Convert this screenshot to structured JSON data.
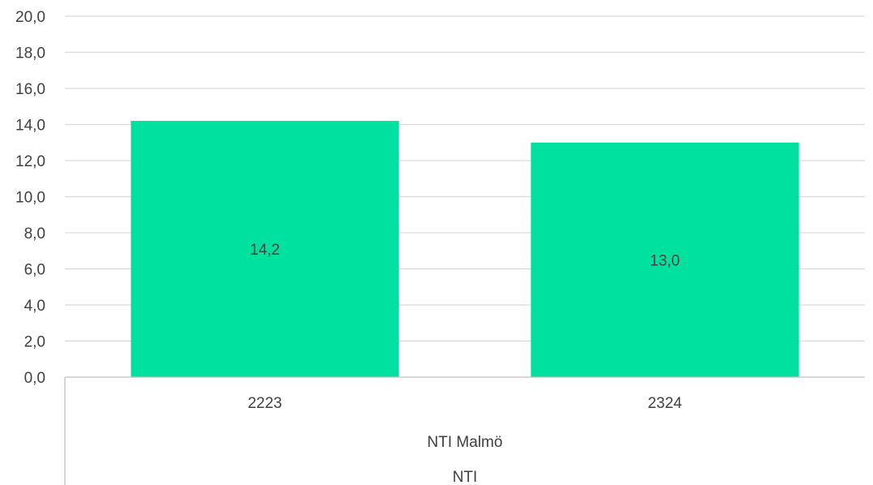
{
  "chart_data": {
    "type": "bar",
    "categories": [
      "2223",
      "2324"
    ],
    "values": [
      14.2,
      13.0
    ],
    "value_labels": [
      "14,2",
      "13,0"
    ],
    "group_labels": [
      "NTI Malmö",
      "NTI"
    ],
    "ylim": [
      0,
      20
    ],
    "y_ticks": [
      "0,0",
      "2,0",
      "4,0",
      "6,0",
      "8,0",
      "10,0",
      "12,0",
      "14,0",
      "16,0",
      "18,0",
      "20,0"
    ],
    "grid": true,
    "legend": "none",
    "colors": {
      "bar": "#00E09E",
      "grid": "#D9D9D9",
      "axis": "#BFBFBF",
      "text": "#404040"
    }
  }
}
